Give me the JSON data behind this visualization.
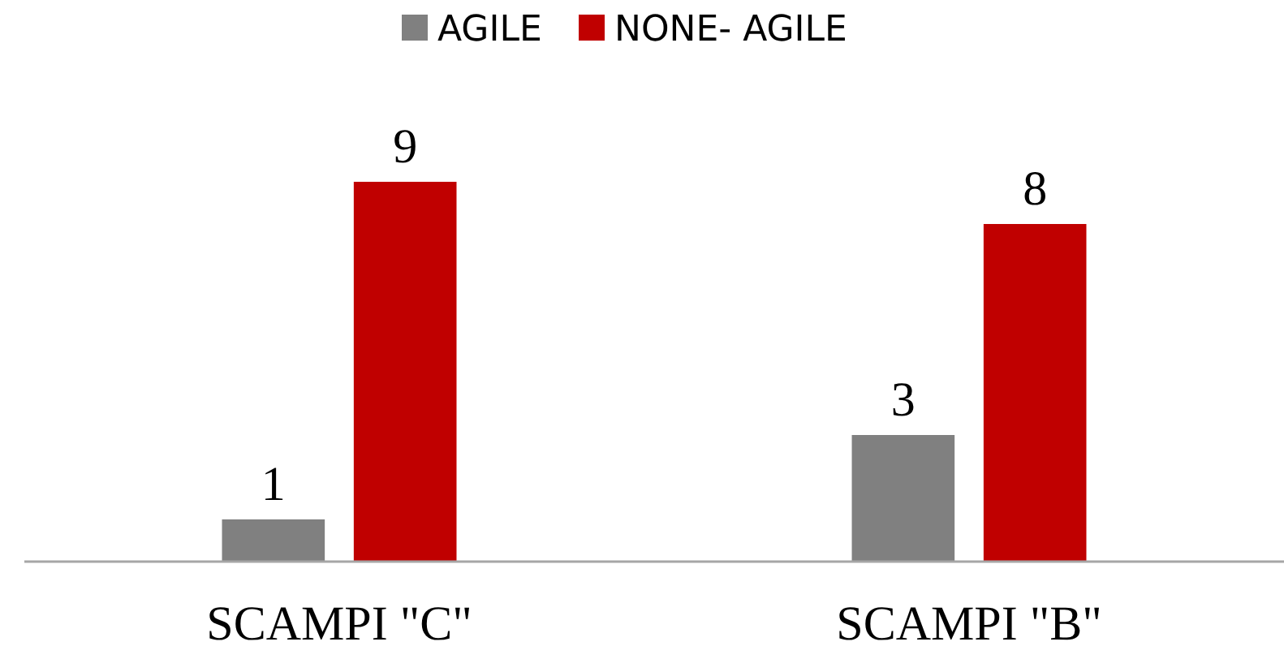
{
  "chart_data": {
    "type": "bar",
    "categories": [
      "SCAMPI \"C\"",
      "SCAMPI \"B\""
    ],
    "series": [
      {
        "name": "AGILE",
        "color": "#808080",
        "values": [
          1,
          3
        ]
      },
      {
        "name": "NONE- AGILE",
        "color": "#c00000",
        "values": [
          9,
          8
        ]
      }
    ],
    "data_labels": true,
    "legend": "top"
  }
}
